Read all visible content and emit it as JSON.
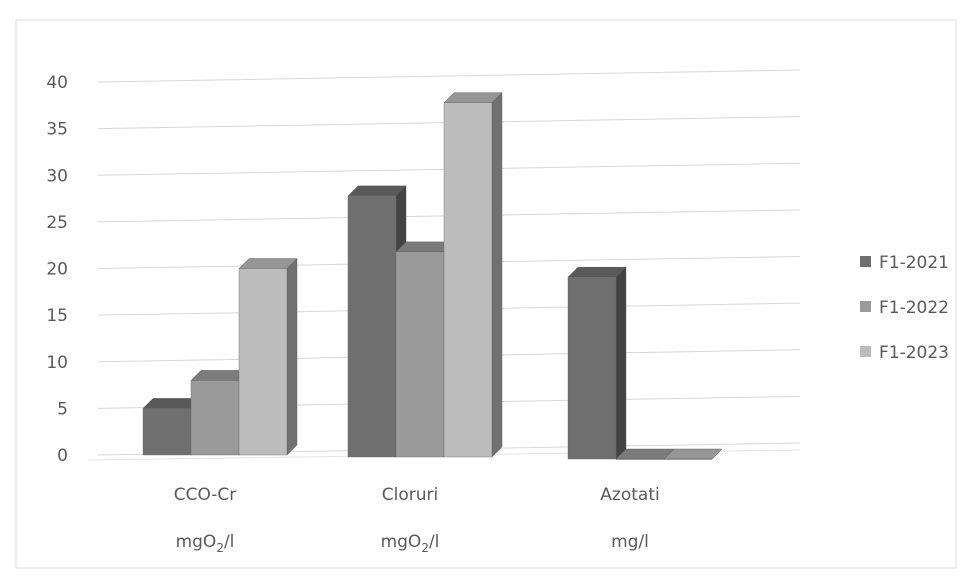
{
  "chart_data": {
    "type": "bar",
    "style": "3d-clustered-column",
    "categories": [
      {
        "name": "CCO-Cr",
        "unit": "mgO2/l",
        "unit_main": "mgO",
        "unit_sub": "2",
        "unit_tail": "/l"
      },
      {
        "name": "Cloruri",
        "unit": "mgO2/l",
        "unit_main": "mgO",
        "unit_sub": "2",
        "unit_tail": "/l"
      },
      {
        "name": "Azotati",
        "unit": "mg/l",
        "unit_main": "mg/l",
        "unit_sub": "",
        "unit_tail": ""
      }
    ],
    "series": [
      {
        "name": "F1-2021",
        "color": "#6f6f6f",
        "values": [
          5,
          28,
          19.5
        ]
      },
      {
        "name": "F1-2022",
        "color": "#9a9a9a",
        "values": [
          8,
          22,
          0
        ]
      },
      {
        "name": "F1-2023",
        "color": "#bcbcbc",
        "values": [
          20,
          38,
          0
        ]
      }
    ],
    "ylim": [
      0,
      40
    ],
    "yticks": [
      0,
      5,
      10,
      15,
      20,
      25,
      30,
      35,
      40
    ],
    "grid": true,
    "legend_position": "right"
  }
}
